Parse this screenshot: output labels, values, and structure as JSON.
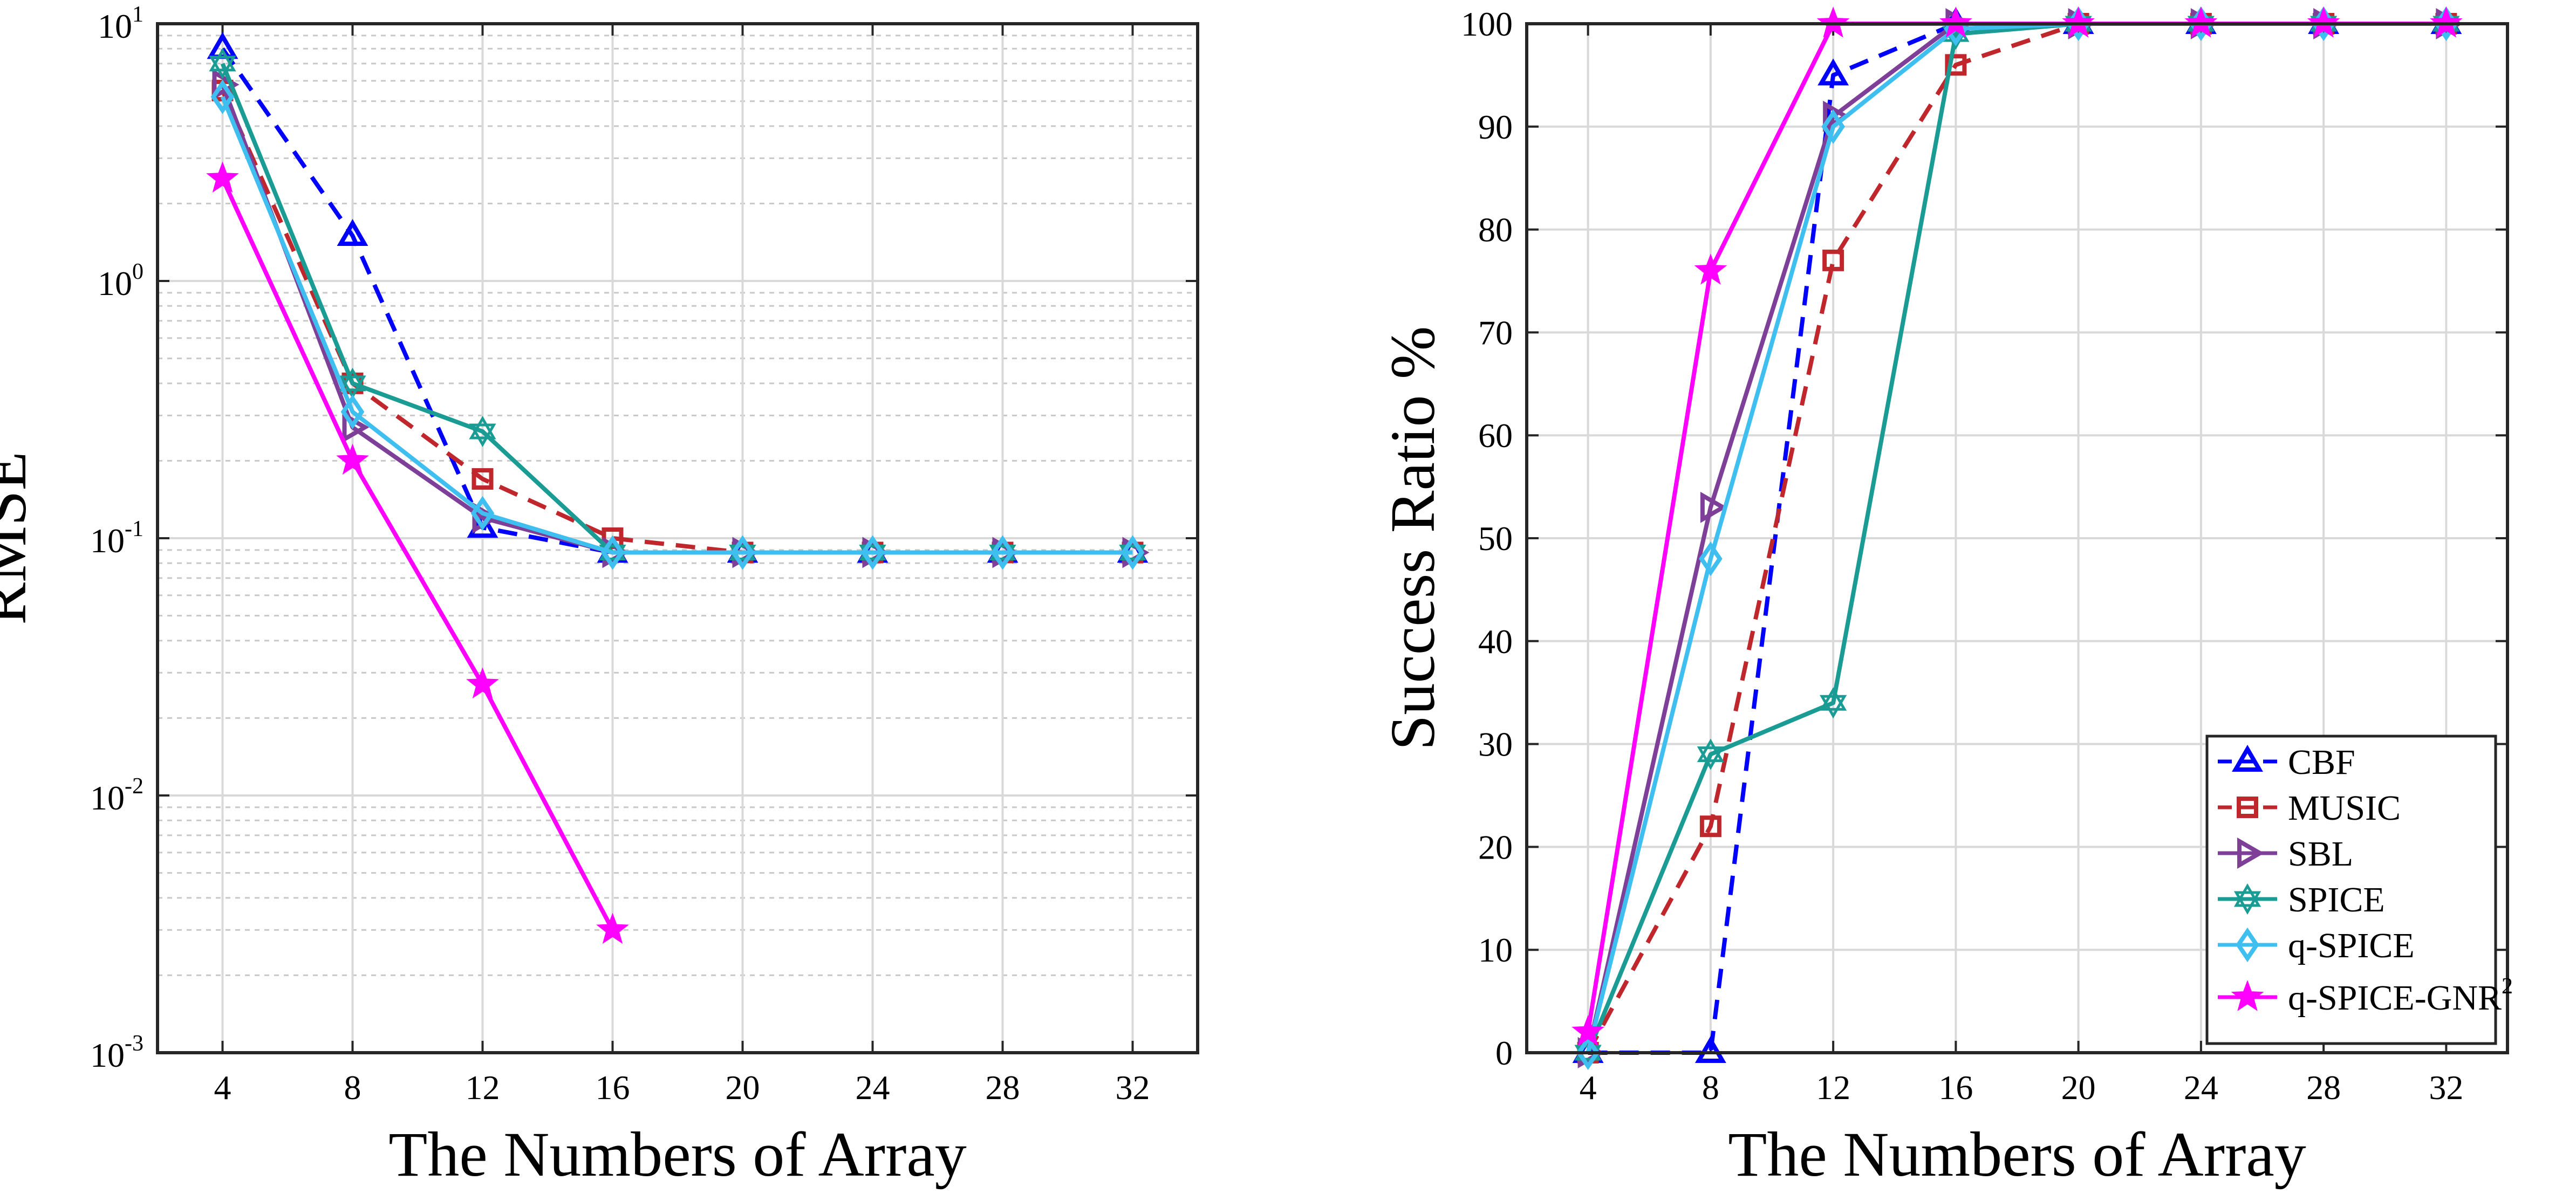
{
  "chart_data": [
    {
      "type": "line",
      "yscale": "log",
      "xlabel": "The Numbers of Array",
      "ylabel": "RMSE",
      "xlim": [
        2,
        34
      ],
      "ylim": [
        0.001,
        10
      ],
      "xticks": [
        4,
        8,
        12,
        16,
        20,
        24,
        28,
        32
      ],
      "yticks": [
        {
          "base": "10",
          "exp": "1",
          "value": 10
        },
        {
          "base": "10",
          "exp": "0",
          "value": 1
        },
        {
          "base": "10",
          "exp": "-1",
          "value": 0.1
        },
        {
          "base": "10",
          "exp": "-2",
          "value": 0.01
        },
        {
          "base": "10",
          "exp": "-3",
          "value": 0.001
        }
      ],
      "grid": true,
      "minor_grid": true,
      "series": [
        {
          "name": "CBF",
          "color": "#0000ff",
          "dash": "dashed",
          "marker": "triangle-up",
          "x": [
            4,
            8,
            12,
            16,
            20,
            24,
            28,
            32
          ],
          "y": [
            8.0,
            1.5,
            0.11,
            0.088,
            0.088,
            0.088,
            0.088,
            0.088
          ]
        },
        {
          "name": "MUSIC",
          "color": "#c0272d",
          "dash": "dashed",
          "marker": "square",
          "x": [
            4,
            8,
            12,
            16,
            20,
            24,
            28,
            32
          ],
          "y": [
            5.5,
            0.4,
            0.17,
            0.1,
            0.088,
            0.088,
            0.088,
            0.088
          ]
        },
        {
          "name": "SBL",
          "color": "#7e3f98",
          "dash": "solid",
          "marker": "triangle-right",
          "x": [
            4,
            8,
            12,
            16,
            20,
            24,
            28,
            32
          ],
          "y": [
            5.8,
            0.27,
            0.12,
            0.088,
            0.088,
            0.088,
            0.088,
            0.088
          ]
        },
        {
          "name": "SPICE",
          "color": "#1a9c94",
          "dash": "solid",
          "marker": "hexagram",
          "x": [
            4,
            8,
            12,
            16,
            20,
            24,
            28,
            32
          ],
          "y": [
            7.0,
            0.4,
            0.26,
            0.088,
            0.088,
            0.088,
            0.088,
            0.088
          ]
        },
        {
          "name": "q-SPICE",
          "color": "#3fbff0",
          "dash": "solid",
          "marker": "diamond",
          "x": [
            4,
            8,
            12,
            16,
            20,
            24,
            28,
            32
          ],
          "y": [
            5.2,
            0.31,
            0.125,
            0.088,
            0.088,
            0.088,
            0.088,
            0.088
          ]
        },
        {
          "name": "q-SPICE-GNR",
          "color": "#ff00ff",
          "dash": "solid",
          "marker": "pentagram",
          "x": [
            4,
            8,
            12,
            16
          ],
          "y": [
            2.5,
            0.2,
            0.027,
            0.003
          ]
        }
      ]
    },
    {
      "type": "line",
      "xlabel": "The Numbers of Array",
      "ylabel": "Success Ratio %",
      "xlim": [
        2,
        34
      ],
      "ylim": [
        0,
        100
      ],
      "xticks": [
        4,
        8,
        12,
        16,
        20,
        24,
        28,
        32
      ],
      "yticks": [
        0,
        10,
        20,
        30,
        40,
        50,
        60,
        70,
        80,
        90,
        100
      ],
      "grid": true,
      "legend": {
        "position": "bottom-right",
        "entries": [
          {
            "label": "CBF",
            "sup": ""
          },
          {
            "label": "MUSIC",
            "sup": ""
          },
          {
            "label": "SBL",
            "sup": ""
          },
          {
            "label": "SPICE",
            "sup": ""
          },
          {
            "label": "q-SPICE",
            "sup": ""
          },
          {
            "label": "q-SPICE-GNR",
            "sup": "2"
          }
        ]
      },
      "series": [
        {
          "name": "CBF",
          "color": "#0000ff",
          "dash": "dashed",
          "marker": "triangle-up",
          "x": [
            4,
            8,
            12,
            16,
            20,
            24,
            28,
            32
          ],
          "y": [
            0,
            0,
            95,
            100,
            100,
            100,
            100,
            100
          ]
        },
        {
          "name": "MUSIC",
          "color": "#c0272d",
          "dash": "dashed",
          "marker": "square",
          "x": [
            4,
            8,
            12,
            16,
            20,
            24,
            28,
            32
          ],
          "y": [
            0,
            22,
            77,
            96,
            100,
            100,
            100,
            100
          ]
        },
        {
          "name": "SBL",
          "color": "#7e3f98",
          "dash": "solid",
          "marker": "triangle-right",
          "x": [
            4,
            8,
            12,
            16,
            20,
            24,
            28,
            32
          ],
          "y": [
            0,
            53,
            91,
            100,
            100,
            100,
            100,
            100
          ]
        },
        {
          "name": "SPICE",
          "color": "#1a9c94",
          "dash": "solid",
          "marker": "hexagram",
          "x": [
            4,
            8,
            12,
            16,
            20,
            24,
            28,
            32
          ],
          "y": [
            0,
            29,
            34,
            99,
            100,
            100,
            100,
            100
          ]
        },
        {
          "name": "q-SPICE",
          "color": "#3fbff0",
          "dash": "solid",
          "marker": "diamond",
          "x": [
            4,
            8,
            12,
            16,
            20,
            24,
            28,
            32
          ],
          "y": [
            0,
            48,
            90,
            99.5,
            100,
            100,
            100,
            100
          ]
        },
        {
          "name": "q-SPICE-GNR",
          "color": "#ff00ff",
          "dash": "solid",
          "marker": "pentagram",
          "x": [
            4,
            8,
            12,
            16,
            20,
            24,
            28,
            32
          ],
          "y": [
            2,
            76,
            100,
            100,
            100,
            100,
            100,
            100
          ]
        }
      ]
    }
  ]
}
